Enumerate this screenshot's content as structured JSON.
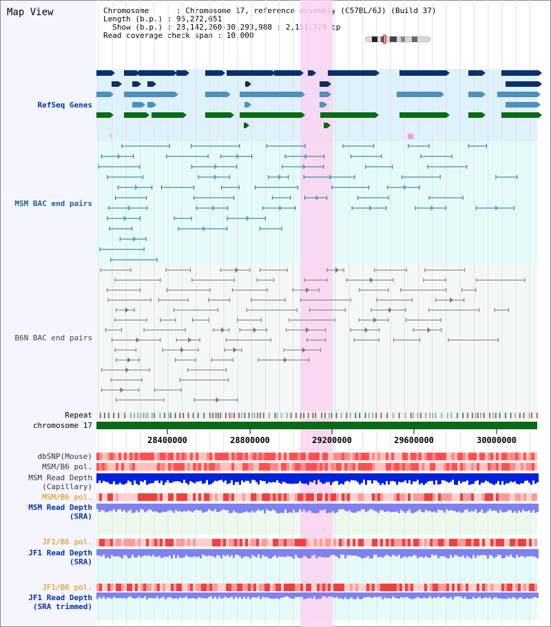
{
  "title": "Map View",
  "info": {
    "line1": "Chromosome      : Chromosome 17, reference assembly (C57BL/6J) (Build 37)",
    "line2": "Length (b.p.) : 95,272,651",
    "line3": "  Show (b.p.) : 28,142,260-30,293,988 : 2,151,729 bp",
    "line4": "Read coverage check span : 10,000"
  },
  "tracks": {
    "refseq": "RefSeq Genes",
    "msm_bac": "MSM BAC end pairs",
    "b6n_bac": "B6N BAC end pairs",
    "repeat": "Repeat",
    "chromosome": "chromosome 17",
    "dbsnp": "dbSNP(Mouse)",
    "msm_b6_pol": "MSM/B6 pol.",
    "msm_read_depth_cap_1": "MSM Read Depth",
    "msm_read_depth_cap_2": "(Capillary)",
    "msm_b6_pol_2": "MSM/B6 pol.",
    "msm_read_depth_sra_1": "MSM Read Depth",
    "msm_read_depth_sra_2": "(SRA)",
    "jf1_b6_pol": "JF1/B6 pol.",
    "jf1_read_depth_sra_1": "JF1 Read Depth",
    "jf1_read_depth_sra_2": "(SRA)",
    "jf1_b6_pol_2": "JF1/B6 pol.",
    "jf1_read_depth_trim_1": "JF1 Read Depth",
    "jf1_read_depth_trim_2": "(SRA trimmed)"
  },
  "axis": {
    "ticks": [
      "28400000",
      "28800000",
      "29200000",
      "29600000",
      "30000000"
    ]
  },
  "colors": {
    "highlight": "#f9d4f1",
    "refseq_bg": "#dff1fb",
    "msm_bg": "#e6fbf9",
    "b6n_bg": "#f3f7f7",
    "gene_dark": "#0b2f6b",
    "gene_mid": "#4a91bd",
    "gene_green": "#0b6a16",
    "bac_line": "#1e6f8f",
    "b6n_line": "#777777",
    "depth_blue": "#0022dd",
    "depth_light": "#8080f0",
    "snp_red": "#f06060"
  }
}
